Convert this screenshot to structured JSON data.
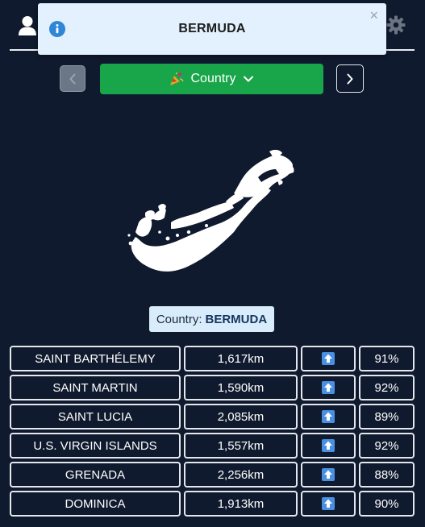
{
  "toast": {
    "title": "BERMUDA",
    "close_symbol": "×",
    "icon": "info-icon"
  },
  "header": {
    "user_icon": "user-icon",
    "settings_icon": "gear-icon"
  },
  "nav": {
    "prev_icon": "chevron-left-icon",
    "next_icon": "chevron-right-icon",
    "mode_label": "Country",
    "mode_icon": "party-popper-icon"
  },
  "answer": {
    "prefix": "Country:",
    "name": "BERMUDA"
  },
  "guesses": [
    {
      "country": "SAINT BARTHÉLEMY",
      "distance": "1,617km",
      "direction": "arrow-up-icon",
      "proximity": "91%"
    },
    {
      "country": "SAINT MARTIN",
      "distance": "1,590km",
      "direction": "arrow-up-icon",
      "proximity": "92%"
    },
    {
      "country": "SAINT LUCIA",
      "distance": "2,085km",
      "direction": "arrow-up-icon",
      "proximity": "89%"
    },
    {
      "country": "U.S. VIRGIN ISLANDS",
      "distance": "1,557km",
      "direction": "arrow-up-icon",
      "proximity": "92%"
    },
    {
      "country": "GRENADA",
      "distance": "2,256km",
      "direction": "arrow-up-icon",
      "proximity": "88%"
    },
    {
      "country": "DOMINICA",
      "distance": "1,913km",
      "direction": "arrow-up-icon",
      "proximity": "90%"
    }
  ],
  "colors": {
    "background": "#101a2e",
    "dropdown": "#19a64a",
    "toast": "#e2f1fd",
    "info": "#2f86d6",
    "arrow_box": "#4a90e2"
  }
}
